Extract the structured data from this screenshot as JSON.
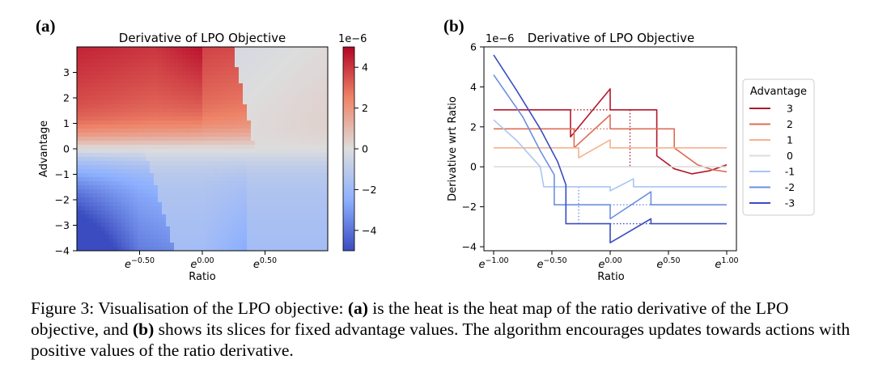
{
  "panels": {
    "a": {
      "label": "(a)",
      "title": "Derivative of LPO Objective",
      "xlabel": "Ratio",
      "ylabel": "Advantage",
      "colorbar_scale": "1e−6",
      "colorbar_ticks": [
        "4",
        "2",
        "0",
        "−2",
        "−4"
      ],
      "colorbar_tick_values": [
        4,
        2,
        0,
        -2,
        -4
      ],
      "colorbar_range": [
        -5,
        5
      ],
      "y_ticks": [
        "3",
        "2",
        "1",
        "0",
        "−1",
        "−2",
        "−3",
        "−4"
      ],
      "y_tick_values": [
        3,
        2,
        1,
        0,
        -1,
        -2,
        -3,
        -4
      ],
      "x_tick_base": "e",
      "x_tick_exponents": [
        "−0.50",
        "0.00",
        "0.50"
      ],
      "x_tick_values": [
        -0.5,
        0,
        0.5
      ],
      "colormap": "coolwarm"
    },
    "b": {
      "label": "(b)",
      "title": "Derivative of LPO Objective",
      "xlabel": "Ratio",
      "ylabel": "Derivative wrt Ratio",
      "y_scale": "1e−6",
      "y_ticks": [
        "6",
        "4",
        "2",
        "0",
        "−2",
        "−4"
      ],
      "y_tick_values": [
        6,
        4,
        2,
        0,
        -2,
        -4
      ],
      "x_tick_base": "e",
      "x_tick_exponents": [
        "−1.00",
        "−0.50",
        "0.00",
        "0.50",
        "1.00"
      ],
      "x_tick_values": [
        -1,
        -0.5,
        0,
        0.5,
        1
      ],
      "legend_title": "Advantage",
      "legend_position": "outside right"
    }
  },
  "chart_data": [
    {
      "type": "heatmap",
      "title": "Derivative of LPO Objective",
      "xlabel": "Ratio",
      "ylabel": "Advantage",
      "x_scale": "log (base e)",
      "xlim_log": [
        -1,
        1
      ],
      "ylim": [
        -4,
        4
      ],
      "zlim": [
        -5e-06,
        5e-06
      ],
      "colormap": "coolwarm"
    },
    {
      "type": "line",
      "title": "Derivative of LPO Objective",
      "xlabel": "Ratio",
      "ylabel": "Derivative wrt Ratio",
      "x_scale": "log (base e)",
      "xlim_log": [
        -1,
        1
      ],
      "ylim": [
        -4.2,
        6
      ],
      "y_multiplier": "1e-6",
      "series": [
        {
          "name": "3",
          "color": "#b2182b",
          "points": [
            [
              -1.0,
              2.85
            ],
            [
              -0.34,
              2.85
            ],
            [
              -0.34,
              1.5
            ],
            [
              0.0,
              3.9
            ],
            [
              0.0,
              2.85
            ],
            [
              0.4,
              2.85
            ],
            [
              0.4,
              0.55
            ],
            [
              0.55,
              -0.1
            ],
            [
              0.7,
              -0.35
            ],
            [
              0.85,
              -0.2
            ],
            [
              1.0,
              0.1
            ]
          ]
        },
        {
          "name": "2",
          "color": "#dd6e54",
          "points": [
            [
              -1.0,
              1.9
            ],
            [
              -0.31,
              1.9
            ],
            [
              -0.31,
              0.95
            ],
            [
              0.0,
              2.6
            ],
            [
              0.0,
              1.9
            ],
            [
              0.55,
              1.9
            ],
            [
              0.55,
              0.95
            ],
            [
              0.75,
              0.1
            ],
            [
              0.88,
              -0.15
            ],
            [
              1.0,
              -0.25
            ]
          ]
        },
        {
          "name": "1",
          "color": "#f4b28e",
          "points": [
            [
              -1.0,
              0.95
            ],
            [
              -0.27,
              0.95
            ],
            [
              -0.27,
              0.45
            ],
            [
              0.0,
              1.35
            ],
            [
              0.0,
              0.95
            ],
            [
              1.0,
              0.95
            ]
          ]
        },
        {
          "name": "0",
          "color": "#dcdcdc",
          "points": [
            [
              -1.0,
              0.0
            ],
            [
              1.0,
              0.0
            ]
          ]
        },
        {
          "name": "-1",
          "color": "#a9c6f2",
          "points": [
            [
              -1.0,
              2.35
            ],
            [
              -0.8,
              1.3
            ],
            [
              -0.6,
              0.0
            ],
            [
              -0.57,
              -1.0
            ],
            [
              0.0,
              -1.0
            ],
            [
              0.0,
              -1.2
            ],
            [
              0.2,
              -0.6
            ],
            [
              0.2,
              -1.0
            ],
            [
              1.0,
              -1.0
            ]
          ]
        },
        {
          "name": "-2",
          "color": "#6d8fe0",
          "points": [
            [
              -1.0,
              4.6
            ],
            [
              -0.75,
              2.5
            ],
            [
              -0.6,
              0.8
            ],
            [
              -0.48,
              -0.4
            ],
            [
              -0.48,
              -1.9
            ],
            [
              0.0,
              -1.9
            ],
            [
              0.0,
              -2.6
            ],
            [
              0.35,
              -1.25
            ],
            [
              0.35,
              -1.9
            ],
            [
              1.0,
              -1.9
            ]
          ]
        },
        {
          "name": "-3",
          "color": "#3a4cc0",
          "points": [
            [
              -1.0,
              5.6
            ],
            [
              -0.8,
              3.8
            ],
            [
              -0.6,
              1.9
            ],
            [
              -0.45,
              0.25
            ],
            [
              -0.38,
              -0.9
            ],
            [
              -0.38,
              -2.85
            ],
            [
              0.0,
              -2.85
            ],
            [
              0.0,
              -3.8
            ],
            [
              0.35,
              -2.6
            ],
            [
              0.35,
              -2.85
            ],
            [
              1.0,
              -2.85
            ]
          ]
        }
      ],
      "dotted_guides": [
        {
          "color": "#b2182b",
          "points": [
            [
              -0.34,
              2.85
            ],
            [
              0.0,
              2.85
            ]
          ]
        },
        {
          "color": "#dd6e54",
          "points": [
            [
              -0.31,
              1.9
            ],
            [
              0.0,
              1.9
            ]
          ]
        },
        {
          "color": "#dd6e54",
          "points": [
            [
              0.65,
              0.0
            ],
            [
              0.88,
              0.0
            ]
          ]
        },
        {
          "color": "#b2182b",
          "points": [
            [
              0.17,
              2.85
            ],
            [
              0.17,
              0.0
            ]
          ]
        },
        {
          "color": "#3a4cc0",
          "points": [
            [
              -1.0,
              0.0
            ],
            [
              -0.38,
              0.0
            ]
          ]
        },
        {
          "color": "#6d8fe0",
          "points": [
            [
              -0.27,
              -1.0
            ],
            [
              -0.27,
              -2.8
            ]
          ]
        },
        {
          "color": "#6d8fe0",
          "points": [
            [
              0.0,
              -1.9
            ],
            [
              0.35,
              -1.9
            ]
          ]
        },
        {
          "color": "#3a4cc0",
          "points": [
            [
              0.0,
              -2.85
            ],
            [
              0.35,
              -2.85
            ]
          ]
        }
      ]
    }
  ],
  "caption": {
    "prefix": "Figure 3: Visualisation of the LPO objective: ",
    "a_label": "(a)",
    "mid": " is the heat is the heat map of the ratio derivative of the LPO objective, and ",
    "b_label": "(b)",
    "suffix": " shows its slices for fixed advantage values. The algorithm encourages updates towards actions with positive values of the ratio derivative."
  }
}
